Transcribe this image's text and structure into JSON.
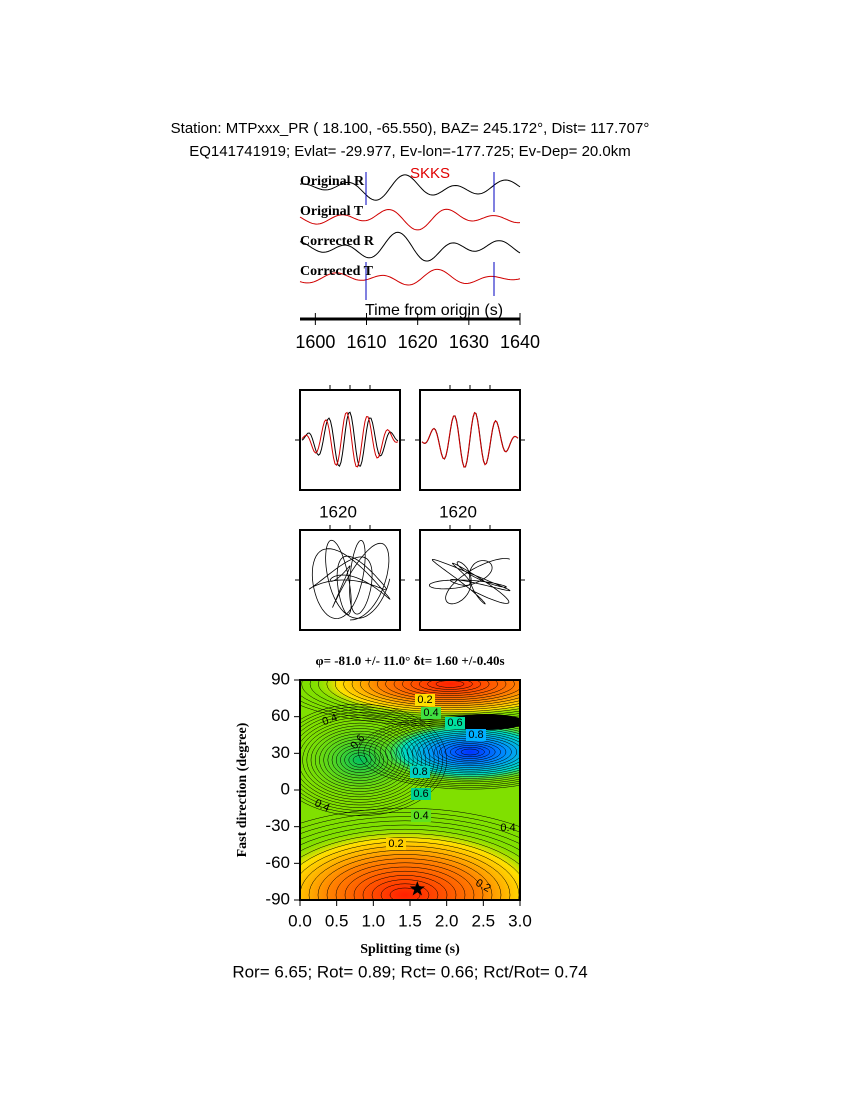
{
  "header": {
    "line1": "Station: MTPxxx_PR (  18.100,  -65.550), BAZ=  245.172°, Dist=  117.707°",
    "line2": "EQ141741919; Evlat= -29.977, Ev-lon=-177.725; Ev-Dep= 20.0km"
  },
  "waveforms": {
    "traces": [
      "Original R",
      "Original T",
      "Corrected R",
      "Corrected T"
    ],
    "phase": "SKKS",
    "xlabel": "Time from origin (s)",
    "xlim": [
      1597,
      1640
    ],
    "xticks": [
      1600,
      1610,
      1620,
      1630,
      1640
    ]
  },
  "particle_panels": [
    {
      "tick_label": "1620"
    },
    {
      "tick_label": "1620"
    }
  ],
  "contour": {
    "title": "φ= -81.0 +/- 11.0° δt= 1.60 +/-0.40s",
    "xlabel": "Splitting time (s)",
    "ylabel": "Fast direction (degree)",
    "xlim": [
      0,
      3
    ],
    "ylim": [
      -90,
      90
    ],
    "xticks": [
      {
        "value": 0,
        "label": "0.0"
      },
      0.5,
      {
        "value": 1,
        "label": "1.0"
      },
      1.5,
      {
        "value": 2,
        "label": "2.0"
      },
      2.5,
      {
        "value": 3,
        "label": "3.0"
      }
    ],
    "yticks": [
      90,
      60,
      30,
      0,
      -30,
      -60,
      -90
    ],
    "contour_labels": [
      0.2,
      0.4,
      0.6,
      0.8,
      0.8,
      0.6,
      0.4,
      0.2,
      0.4,
      0.4,
      0.6,
      0.2,
      0.4
    ],
    "best": {
      "dt": 1.6,
      "phi": -81
    }
  },
  "footer": "Ror= 6.65; Rot= 0.89; Rct= 0.66; Rct/Rot= 0.74"
}
